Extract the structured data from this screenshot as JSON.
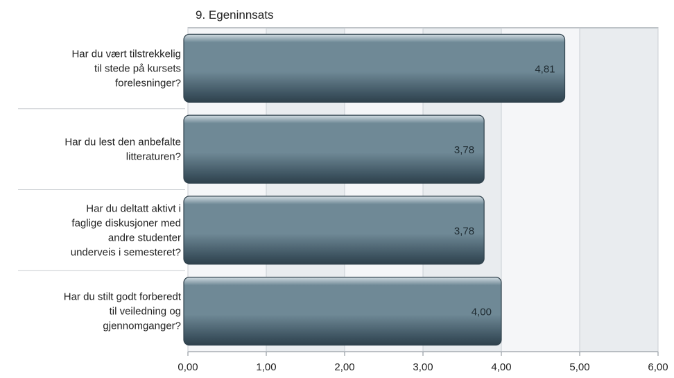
{
  "chart_data": {
    "type": "bar",
    "orientation": "horizontal",
    "title": "9. Egeninnsats",
    "categories": [
      "Har du vært tilstrekkelig til stede på kursets forelesninger?",
      "Har du lest den anbefalte litteraturen?",
      "Har du deltatt aktivt i faglige diskusjoner med andre studenter underveis i semesteret?",
      "Har du stilt godt forberedt til veiledning og gjennomganger?"
    ],
    "category_lines": [
      [
        "Har du vært tilstrekkelig",
        "til stede på kursets",
        "forelesninger?"
      ],
      [
        "Har du lest den anbefalte",
        "litteraturen?"
      ],
      [
        "Har du deltatt aktivt i",
        "faglige diskusjoner med",
        "andre studenter",
        "underveis i semesteret?"
      ],
      [
        "Har du stilt godt forberedt",
        "til veiledning og",
        "gjennomganger?"
      ]
    ],
    "values": [
      4.81,
      3.78,
      3.78,
      4.0
    ],
    "value_labels": [
      "4,81",
      "3,78",
      "3,78",
      "4,00"
    ],
    "xlim": [
      0,
      6
    ],
    "x_ticks": [
      0,
      1,
      2,
      3,
      4,
      5,
      6
    ],
    "x_tick_labels": [
      "0,00",
      "1,00",
      "2,00",
      "3,00",
      "4,00",
      "5,00",
      "6,00"
    ],
    "grid": true,
    "xlabel": "",
    "ylabel": ""
  },
  "colors": {
    "bar_top": "#d3dde3",
    "bar_mid": "#6f8996",
    "bar_bottom": "#3d5360",
    "bar_edge": "#2f414c",
    "band_even": "#e9ecef",
    "band_odd": "#f5f6f8",
    "grid": "#c9ced3",
    "axis": "#808890",
    "text": "#222222"
  }
}
